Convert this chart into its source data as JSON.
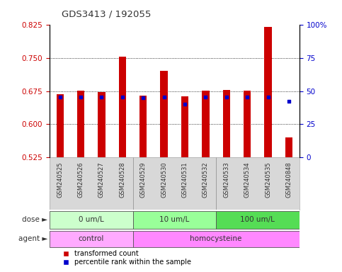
{
  "title": "GDS3413 / 192055",
  "samples": [
    "GSM240525",
    "GSM240526",
    "GSM240527",
    "GSM240528",
    "GSM240529",
    "GSM240530",
    "GSM240531",
    "GSM240532",
    "GSM240533",
    "GSM240534",
    "GSM240535",
    "GSM240848"
  ],
  "bar_values": [
    0.668,
    0.676,
    0.672,
    0.752,
    0.664,
    0.72,
    0.663,
    0.676,
    0.678,
    0.676,
    0.82,
    0.57
  ],
  "percentile_values": [
    0.661,
    0.661,
    0.661,
    0.661,
    0.66,
    0.661,
    0.645,
    0.661,
    0.661,
    0.661,
    0.661,
    0.652
  ],
  "bar_bottom": 0.525,
  "ylim_left": [
    0.525,
    0.825
  ],
  "ylim_right": [
    0,
    100
  ],
  "yticks_left": [
    0.525,
    0.6,
    0.675,
    0.75,
    0.825
  ],
  "yticks_right": [
    0,
    25,
    50,
    75,
    100
  ],
  "bar_color": "#cc0000",
  "percentile_color": "#0000cc",
  "bg_color": "#ffffff",
  "dose_groups": [
    {
      "label": "0 um/L",
      "start": 0,
      "end": 3,
      "color": "#ccffcc"
    },
    {
      "label": "10 um/L",
      "start": 4,
      "end": 7,
      "color": "#99ff99"
    },
    {
      "label": "100 um/L",
      "start": 8,
      "end": 11,
      "color": "#55dd55"
    }
  ],
  "agent_groups": [
    {
      "label": "control",
      "start": 0,
      "end": 3,
      "color": "#ffaaff"
    },
    {
      "label": "homocysteine",
      "start": 4,
      "end": 11,
      "color": "#ff88ff"
    }
  ],
  "legend_red": "transformed count",
  "legend_blue": "percentile rank within the sample",
  "dose_label": "dose",
  "agent_label": "agent",
  "tick_label_color_left": "#cc0000",
  "tick_label_color_right": "#0000cc"
}
